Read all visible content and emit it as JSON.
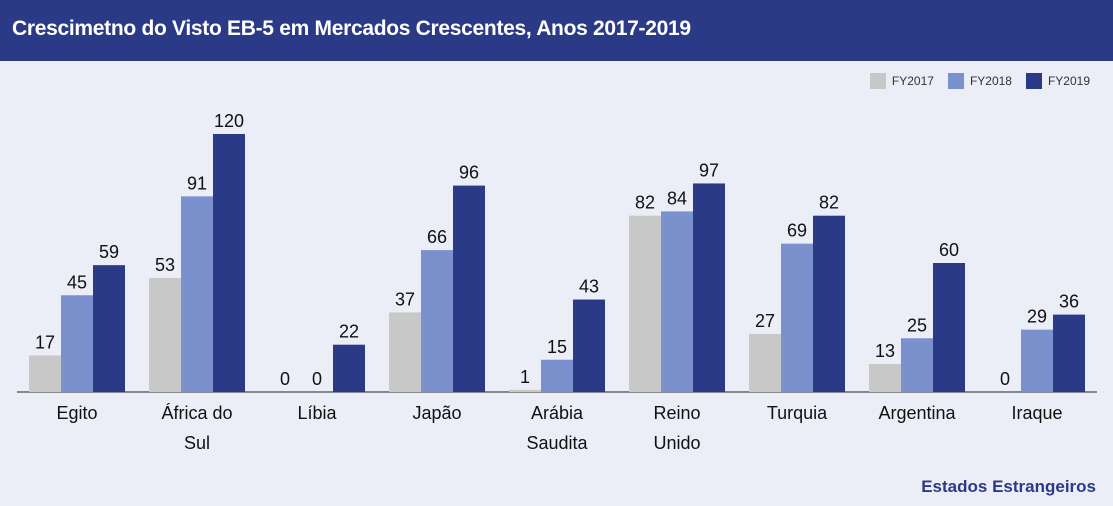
{
  "header": {
    "title": "Crescimetno do Visto EB-5 em Mercados Crescentes, Anos 2017-2019"
  },
  "source_label": "Estados Estrangeiros",
  "chart_data": {
    "type": "bar",
    "title": "Crescimetno do Visto EB-5 em Mercados Crescentes, Anos 2017-2019",
    "xlabel": "",
    "ylabel": "",
    "ylim": [
      0,
      125
    ],
    "grid": false,
    "legend_position": "top-right",
    "categories": [
      [
        "Egito"
      ],
      [
        "África do",
        "Sul"
      ],
      [
        "Líbia"
      ],
      [
        "Japão"
      ],
      [
        "Arábia",
        "Saudita"
      ],
      [
        "Reino",
        "Unido"
      ],
      [
        "Turquia"
      ],
      [
        "Argentina"
      ],
      [
        "Iraque"
      ]
    ],
    "series": [
      {
        "name": "FY2017",
        "color": "#c8c8c8",
        "values": [
          17,
          53,
          0,
          37,
          1,
          82,
          27,
          13,
          0
        ]
      },
      {
        "name": "FY2018",
        "color": "#7b91ce",
        "values": [
          45,
          91,
          0,
          66,
          15,
          84,
          69,
          25,
          29
        ]
      },
      {
        "name": "FY2019",
        "color": "#2b3a87",
        "values": [
          59,
          120,
          22,
          96,
          43,
          97,
          82,
          60,
          36
        ]
      }
    ]
  }
}
